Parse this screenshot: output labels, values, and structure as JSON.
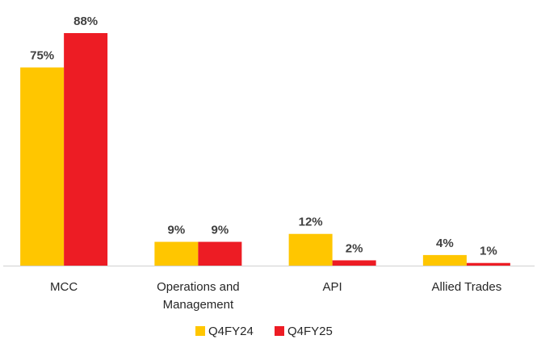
{
  "chart_data": {
    "type": "bar",
    "categories": [
      [
        "MCC"
      ],
      [
        "Operations and",
        "Management"
      ],
      [
        "API"
      ],
      [
        "Allied Trades"
      ]
    ],
    "series": [
      {
        "name": "Q4FY24",
        "color": "#FFC600",
        "values": [
          75,
          9,
          12,
          4
        ],
        "labels": [
          "75%",
          "9%",
          "12%",
          "4%"
        ]
      },
      {
        "name": "Q4FY25",
        "color": "#ED1C24",
        "values": [
          88,
          9,
          2,
          1
        ],
        "labels": [
          "88%",
          "9%",
          "2%",
          "1%"
        ]
      }
    ],
    "title": "",
    "xlabel": "",
    "ylabel": "",
    "ylim": [
      0,
      88
    ],
    "grid": false,
    "legend": "bottom-center"
  }
}
